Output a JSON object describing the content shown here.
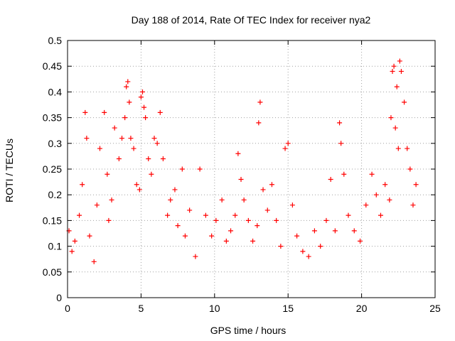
{
  "chart_data": {
    "type": "scatter",
    "title": "Day 188 of 2014, Rate Of TEC Index for receiver nya2",
    "xlabel": "GPS time / hours",
    "ylabel": "ROTI / TECUs",
    "xlim": [
      0,
      25
    ],
    "ylim": [
      0,
      0.5
    ],
    "x_ticks": [
      "0",
      "5",
      "10",
      "15",
      "20",
      "25"
    ],
    "y_ticks": [
      "0",
      "0.05",
      "0.1",
      "0.15",
      "0.2",
      "0.25",
      "0.3",
      "0.35",
      "0.4",
      "0.45",
      "0.5"
    ],
    "grid": true,
    "legend": "none",
    "marker": "plus",
    "color": "#ff0000",
    "series": [
      {
        "x": [
          0.1,
          0.3,
          0.5,
          0.8,
          1.0,
          1.2,
          1.3,
          1.5,
          1.8,
          2.0,
          2.2,
          2.5,
          2.7,
          2.8,
          3.0,
          3.2,
          3.5,
          3.7,
          3.9,
          4.0,
          4.1,
          4.2,
          4.3,
          4.5,
          4.7,
          4.9,
          5.0,
          5.1,
          5.2,
          5.3,
          5.5,
          5.7,
          5.9,
          6.1,
          6.3,
          6.5,
          6.8,
          7.0,
          7.3,
          7.5,
          7.8,
          8.0,
          8.3,
          8.7,
          9.0,
          9.4,
          9.8,
          10.1,
          10.5,
          10.8,
          11.1,
          11.4,
          11.6,
          11.8,
          12.0,
          12.3,
          12.6,
          12.9,
          13.0,
          13.1,
          13.3,
          13.6,
          13.9,
          14.2,
          14.5,
          14.8,
          15.0,
          15.3,
          15.6,
          16.0,
          16.4,
          16.8,
          17.2,
          17.6,
          17.9,
          18.2,
          18.5,
          18.6,
          18.8,
          19.1,
          19.5,
          19.9,
          20.3,
          20.7,
          21.0,
          21.3,
          21.6,
          21.9,
          22.0,
          22.1,
          22.2,
          22.3,
          22.4,
          22.5,
          22.6,
          22.7,
          22.9,
          23.1,
          23.3,
          23.5,
          23.7
        ],
        "y": [
          0.13,
          0.09,
          0.11,
          0.16,
          0.22,
          0.36,
          0.31,
          0.12,
          0.07,
          0.18,
          0.29,
          0.36,
          0.24,
          0.15,
          0.19,
          0.33,
          0.27,
          0.31,
          0.35,
          0.41,
          0.42,
          0.38,
          0.31,
          0.29,
          0.22,
          0.21,
          0.39,
          0.4,
          0.37,
          0.35,
          0.27,
          0.24,
          0.31,
          0.3,
          0.36,
          0.27,
          0.16,
          0.19,
          0.21,
          0.14,
          0.25,
          0.12,
          0.17,
          0.08,
          0.25,
          0.16,
          0.12,
          0.15,
          0.19,
          0.11,
          0.13,
          0.16,
          0.28,
          0.23,
          0.19,
          0.15,
          0.11,
          0.14,
          0.34,
          0.38,
          0.21,
          0.17,
          0.22,
          0.15,
          0.1,
          0.29,
          0.3,
          0.18,
          0.12,
          0.09,
          0.08,
          0.13,
          0.1,
          0.15,
          0.23,
          0.13,
          0.34,
          0.3,
          0.24,
          0.16,
          0.13,
          0.11,
          0.18,
          0.24,
          0.2,
          0.16,
          0.22,
          0.19,
          0.35,
          0.44,
          0.45,
          0.33,
          0.41,
          0.29,
          0.46,
          0.44,
          0.38,
          0.29,
          0.25,
          0.18,
          0.22
        ]
      }
    ]
  }
}
